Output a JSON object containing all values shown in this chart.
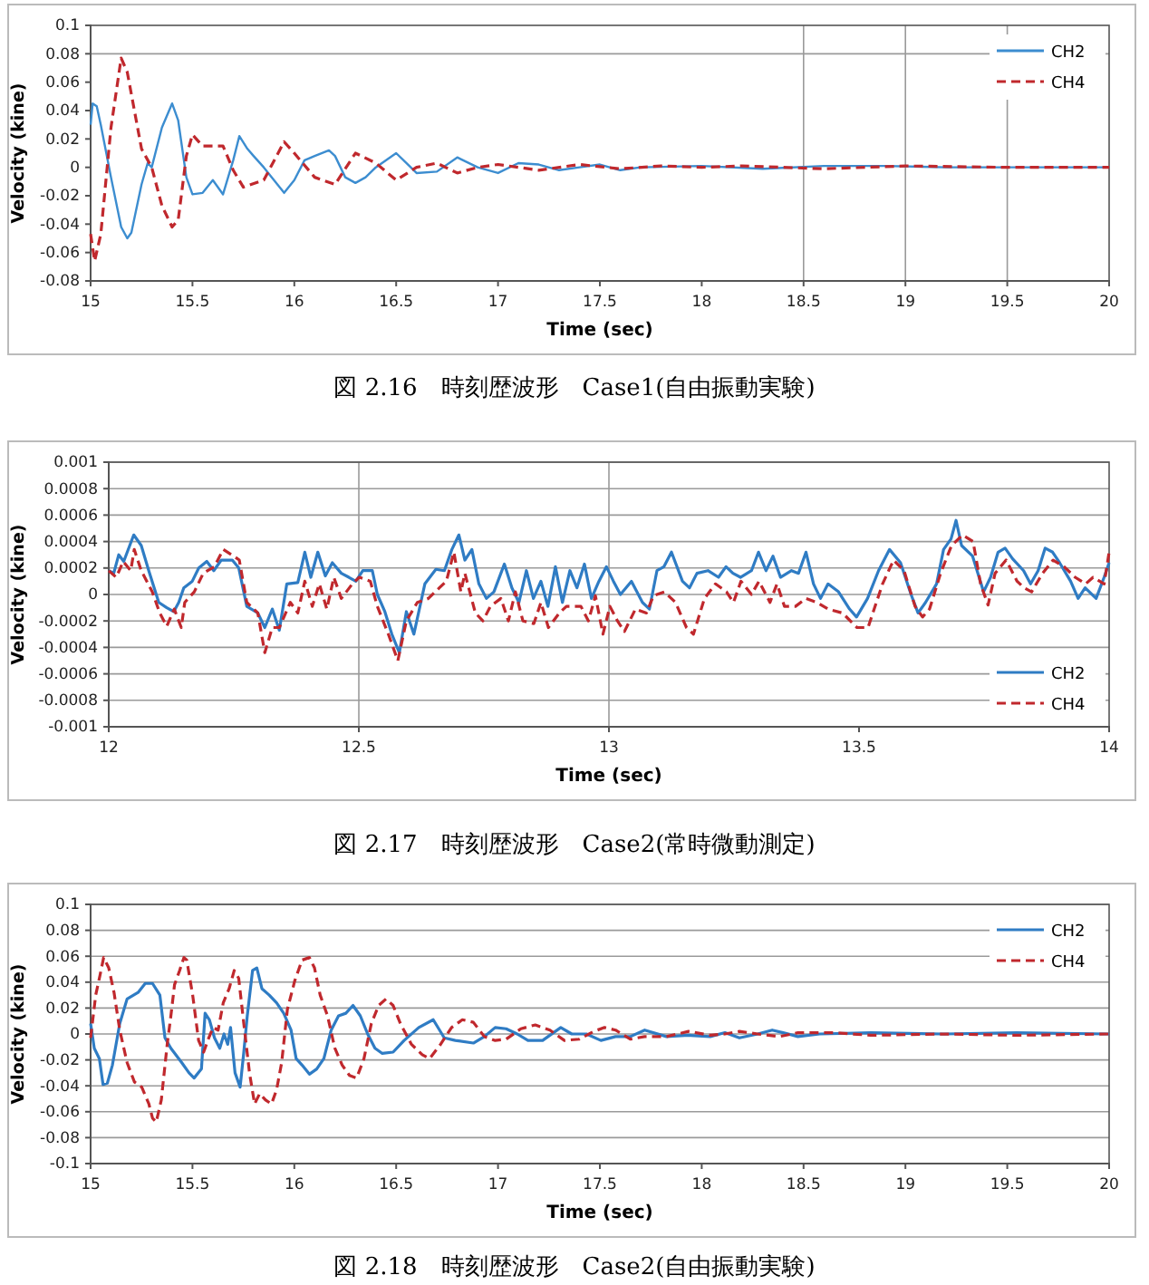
{
  "chart_data": [
    {
      "type": "line",
      "xlabel": "Time (sec)",
      "ylabel": "Velocity (kine)",
      "annotations": [
        "図 2.16　時刻歴波形　Case1(自由振動実験)"
      ],
      "xlim": [
        15,
        20
      ],
      "xticks": [
        15,
        15.5,
        16,
        16.5,
        17,
        17.5,
        18,
        18.5,
        19,
        19.5,
        20
      ],
      "ylim": [
        -0.08,
        0.1
      ],
      "yticks": [
        -0.08,
        -0.06,
        -0.04,
        -0.02,
        0,
        0.02,
        0.04,
        0.06,
        0.08,
        0.1
      ],
      "grid": false,
      "legend": "top right",
      "ref_lines": [
        {
          "axis": "y",
          "value": 0.08
        },
        {
          "axis": "x",
          "value": 18.5
        },
        {
          "axis": "x",
          "value": 19
        },
        {
          "axis": "x",
          "value": 19.5
        }
      ],
      "series": [
        {
          "name": "CH2",
          "color": "#3c8dd0",
          "line_style": "solid",
          "x": [
            15,
            15.01,
            15.03,
            15.05,
            15.1,
            15.15,
            15.18,
            15.2,
            15.25,
            15.28,
            15.3,
            15.35,
            15.4,
            15.43,
            15.47,
            15.5,
            15.55,
            15.6,
            15.65,
            15.7,
            15.73,
            15.77,
            15.8,
            15.85,
            15.9,
            15.95,
            16,
            16.05,
            16.1,
            16.17,
            16.2,
            16.25,
            16.3,
            16.35,
            16.4,
            16.5,
            16.55,
            16.6,
            16.7,
            16.8,
            16.9,
            17,
            17.1,
            17.2,
            17.3,
            17.4,
            17.5,
            17.6,
            17.7,
            18,
            18.3,
            18.6,
            18.9,
            19.2,
            19.5,
            20
          ],
          "values": [
            0.03,
            0.045,
            0.043,
            0.03,
            -0.007,
            -0.042,
            -0.05,
            -0.046,
            -0.012,
            0.003,
            0,
            0.028,
            0.045,
            0.033,
            -0.007,
            -0.019,
            -0.018,
            -0.009,
            -0.019,
            0.005,
            0.022,
            0.013,
            0.008,
            0,
            -0.009,
            -0.018,
            -0.009,
            0.005,
            0.008,
            0.012,
            0.008,
            -0.007,
            -0.011,
            -0.007,
            0,
            0.01,
            0.003,
            -0.004,
            -0.003,
            0.007,
            0,
            -0.004,
            0.003,
            0.002,
            -0.002,
            0,
            0.002,
            -0.002,
            0,
            0.001,
            -0.001,
            0.001,
            0.001,
            0,
            0,
            0
          ]
        },
        {
          "name": "CH4",
          "color": "#c0282d",
          "line_style": "dashed",
          "x": [
            15,
            15.02,
            15.05,
            15.1,
            15.15,
            15.18,
            15.25,
            15.3,
            15.35,
            15.4,
            15.43,
            15.47,
            15.5,
            15.55,
            15.65,
            15.7,
            15.75,
            15.85,
            15.95,
            16,
            16.1,
            16.2,
            16.3,
            16.4,
            16.5,
            16.6,
            16.7,
            16.8,
            16.9,
            17,
            17.2,
            17.4,
            17.6,
            17.8,
            18,
            18.2,
            18.6,
            19,
            19.5,
            20
          ],
          "values": [
            -0.047,
            -0.066,
            -0.047,
            0.028,
            0.077,
            0.067,
            0.013,
            0,
            -0.027,
            -0.042,
            -0.037,
            0.008,
            0.023,
            0.015,
            0.015,
            -0.002,
            -0.014,
            -0.009,
            0.018,
            0.01,
            -0.007,
            -0.012,
            0.01,
            0.003,
            -0.009,
            0,
            0.003,
            -0.004,
            0,
            0.002,
            -0.002,
            0.002,
            -0.001,
            0.001,
            0,
            0.001,
            -0.001,
            0.001,
            0,
            0
          ]
        }
      ]
    },
    {
      "type": "line",
      "xlabel": "Time (sec)",
      "ylabel": "Velocity (kine)",
      "annotations": [
        "図 2.17　時刻歴波形　Case2(常時微動測定)"
      ],
      "xlim": [
        12,
        14
      ],
      "xticks": [
        12,
        12.5,
        13,
        13.5,
        14
      ],
      "ylim": [
        -0.001,
        0.001
      ],
      "yticks": [
        -0.001,
        -0.0008,
        -0.0006,
        -0.0004,
        -0.0002,
        0,
        0.0002,
        0.0004,
        0.0006,
        0.0008,
        0.001
      ],
      "grid": "y",
      "legend": "bottom right",
      "ref_lines": [
        {
          "axis": "x",
          "value": 12.5
        },
        {
          "axis": "x",
          "value": 13
        }
      ],
      "series": [
        {
          "name": "CH2",
          "color": "#2f7cc4",
          "line_style": "solid",
          "x": [
            12,
            12.01,
            12.02,
            12.03,
            12.05,
            12.065,
            12.08,
            12.1,
            12.116,
            12.13,
            12.14,
            12.15,
            12.167,
            12.18,
            12.196,
            12.21,
            12.225,
            12.247,
            12.26,
            12.276,
            12.298,
            12.312,
            12.327,
            12.341,
            12.356,
            12.378,
            12.392,
            12.404,
            12.418,
            12.433,
            12.447,
            12.465,
            12.48,
            12.494,
            12.508,
            12.527,
            12.537,
            12.552,
            12.566,
            12.581,
            12.595,
            12.61,
            12.632,
            12.654,
            12.671,
            12.686,
            12.7,
            12.712,
            12.726,
            12.74,
            12.755,
            12.77,
            12.791,
            12.806,
            12.82,
            12.835,
            12.849,
            12.864,
            12.878,
            12.893,
            12.907,
            12.922,
            12.936,
            12.951,
            12.965,
            12.98,
            12.995,
            13.009,
            13.023,
            13.045,
            13.067,
            13.081,
            13.096,
            13.11,
            13.125,
            13.147,
            13.161,
            13.176,
            13.198,
            13.219,
            13.234,
            13.248,
            13.263,
            13.285,
            13.299,
            13.314,
            13.328,
            13.343,
            13.365,
            13.379,
            13.394,
            13.409,
            13.423,
            13.438,
            13.459,
            13.481,
            13.495,
            13.517,
            13.539,
            13.561,
            13.583,
            13.604,
            13.618,
            13.633,
            13.655,
            13.669,
            13.684,
            13.694,
            13.705,
            13.727,
            13.749,
            13.763,
            13.778,
            13.792,
            13.807,
            13.829,
            13.843,
            13.858,
            13.872,
            13.887,
            13.901,
            13.923,
            13.938,
            13.952,
            13.974,
            13.99,
            14
          ],
          "values": [
            0.00018,
            0.00016,
            0.0003,
            0.00025,
            0.00045,
            0.00037,
            0.00018,
            -6e-05,
            -0.0001,
            -0.00013,
            -6e-05,
            5e-05,
            0.0001,
            0.0002,
            0.00025,
            0.00018,
            0.00026,
            0.00026,
            0.0002,
            -9e-05,
            -0.00014,
            -0.00025,
            -0.00011,
            -0.00027,
            8e-05,
            9e-05,
            0.00032,
            0.00013,
            0.00032,
            0.00014,
            0.00024,
            0.00016,
            0.00013,
            0.0001,
            0.00018,
            0.00018,
            0,
            -0.00013,
            -0.0003,
            -0.00044,
            -0.00013,
            -0.0003,
            8e-05,
            0.00019,
            0.00018,
            0.00034,
            0.00045,
            0.00026,
            0.00034,
            8e-05,
            -3e-05,
            2e-05,
            0.00023,
            5e-05,
            -6e-05,
            0.00018,
            -3e-05,
            0.0001,
            -9e-05,
            0.00021,
            -6e-05,
            0.00018,
            5e-05,
            0.00023,
            -3e-05,
            0.0001,
            0.00021,
            0.0001,
            0,
            0.0001,
            -6e-05,
            -0.00011,
            0.00018,
            0.00021,
            0.00032,
            0.0001,
            5e-05,
            0.00016,
            0.00018,
            0.00013,
            0.00021,
            0.00016,
            0.00013,
            0.00018,
            0.00032,
            0.00018,
            0.00029,
            0.00013,
            0.00018,
            0.00016,
            0.00032,
            8e-05,
            -3e-05,
            8e-05,
            2e-05,
            -0.00011,
            -0.00017,
            -3e-05,
            0.00018,
            0.00034,
            0.00024,
            0,
            -0.00014,
            -6e-05,
            8e-05,
            0.00034,
            0.00042,
            0.00056,
            0.00037,
            0.00029,
            2e-05,
            0.00013,
            0.00032,
            0.00035,
            0.00027,
            0.00018,
            8e-05,
            0.00018,
            0.00035,
            0.00032,
            0.00024,
            0.0001,
            -3e-05,
            5e-05,
            -3e-05,
            0.00013,
            0.00024
          ]
        },
        {
          "name": "CH4",
          "color": "#c0282d",
          "line_style": "dashed",
          "x": [
            12,
            12.015,
            12.029,
            12.044,
            12.051,
            12.065,
            12.087,
            12.102,
            12.116,
            12.131,
            12.145,
            12.152,
            12.171,
            12.189,
            12.211,
            12.229,
            12.25,
            12.261,
            12.276,
            12.298,
            12.312,
            12.327,
            12.341,
            12.363,
            12.378,
            12.392,
            12.407,
            12.421,
            12.436,
            12.45,
            12.465,
            12.487,
            12.501,
            12.523,
            12.537,
            12.559,
            12.578,
            12.595,
            12.617,
            12.639,
            12.661,
            12.675,
            12.69,
            12.704,
            12.712,
            12.733,
            12.748,
            12.763,
            12.784,
            12.799,
            12.813,
            12.828,
            12.85,
            12.864,
            12.879,
            12.901,
            12.915,
            12.944,
            12.959,
            12.973,
            12.988,
            13.002,
            13.017,
            13.031,
            13.053,
            13.075,
            13.089,
            13.111,
            13.133,
            13.155,
            13.169,
            13.191,
            13.213,
            13.235,
            13.249,
            13.264,
            13.285,
            13.3,
            13.322,
            13.336,
            13.351,
            13.373,
            13.394,
            13.416,
            13.438,
            13.467,
            13.496,
            13.518,
            13.547,
            13.569,
            13.59,
            13.612,
            13.627,
            13.641,
            13.663,
            13.685,
            13.707,
            13.728,
            13.743,
            13.758,
            13.772,
            13.794,
            13.816,
            13.83,
            13.845,
            13.867,
            13.888,
            13.91,
            13.932,
            13.953,
            13.968,
            13.99,
            14
          ],
          "values": [
            0.00018,
            0.00013,
            0.00025,
            0.00018,
            0.00034,
            0.00018,
            2e-05,
            -0.00014,
            -0.00024,
            -0.00011,
            -0.00025,
            -6e-05,
            2e-05,
            0.00016,
            0.00021,
            0.00034,
            0.00029,
            0.00026,
            -6e-05,
            -0.00014,
            -0.00044,
            -0.00025,
            -0.00025,
            -6e-05,
            -0.00014,
            0.0001,
            -9e-05,
            8e-05,
            -0.00011,
            0.00013,
            -3e-05,
            8e-05,
            0.00013,
            0.0001,
            -9e-05,
            -0.0003,
            -0.0005,
            -0.0002,
            -6e-05,
            -3e-05,
            5e-05,
            0.0001,
            0.00032,
            2e-05,
            0.00016,
            -0.00014,
            -0.0002,
            -9e-05,
            -3e-05,
            -0.0002,
            2e-05,
            -0.0002,
            -0.00022,
            -6e-05,
            -0.00025,
            -0.00014,
            -9e-05,
            -9e-05,
            -0.0002,
            -1e-05,
            -0.0003,
            -9e-05,
            -0.0002,
            -0.00028,
            -0.00011,
            -0.00014,
            -1e-05,
            2e-05,
            -6e-05,
            -0.00025,
            -0.0003,
            -3e-05,
            8e-05,
            2e-05,
            -6e-05,
            0.0001,
            0,
            0.0001,
            -6e-05,
            8e-05,
            -9e-05,
            -9e-05,
            -3e-05,
            -6e-05,
            -0.00011,
            -0.00014,
            -0.00025,
            -0.00025,
            8e-05,
            0.00026,
            0.00018,
            -9e-05,
            -0.00017,
            -0.00011,
            0.00016,
            0.00037,
            0.00045,
            0.0004,
            8e-05,
            -8e-05,
            0.00016,
            0.00026,
            0.0001,
            5e-05,
            2e-05,
            0.00016,
            0.00026,
            0.00021,
            0.00013,
            8e-05,
            0.00013,
            8e-05,
            0.00032
          ]
        }
      ]
    },
    {
      "type": "line",
      "xlabel": "Time (sec)",
      "ylabel": "Velocity (kine)",
      "annotations": [
        "図 2.18　時刻歴波形　Case2(自由振動実験)"
      ],
      "xlim": [
        15,
        20
      ],
      "xticks": [
        15,
        15.5,
        16,
        16.5,
        17,
        17.5,
        18,
        18.5,
        19,
        19.5,
        20
      ],
      "ylim": [
        -0.1,
        0.1
      ],
      "yticks": [
        -0.1,
        -0.08,
        -0.06,
        -0.04,
        -0.02,
        0,
        0.02,
        0.04,
        0.06,
        0.08,
        0.1
      ],
      "grid": "y",
      "legend": "top right",
      "series": [
        {
          "name": "CH2",
          "color": "#2f7cc4",
          "line_style": "solid",
          "x": [
            15,
            15.018,
            15.043,
            15.061,
            15.082,
            15.107,
            15.143,
            15.179,
            15.233,
            15.268,
            15.304,
            15.34,
            15.365,
            15.394,
            15.447,
            15.483,
            15.508,
            15.544,
            15.562,
            15.583,
            15.608,
            15.634,
            15.655,
            15.673,
            15.687,
            15.709,
            15.734,
            15.752,
            15.769,
            15.795,
            15.816,
            15.841,
            15.877,
            15.913,
            15.948,
            15.984,
            16.009,
            16.038,
            16.074,
            16.11,
            16.145,
            16.181,
            16.217,
            16.253,
            16.288,
            16.324,
            16.36,
            16.396,
            16.432,
            16.485,
            16.539,
            16.611,
            16.682,
            16.736,
            16.79,
            16.879,
            16.933,
            16.986,
            17.04,
            17.094,
            17.147,
            17.219,
            17.308,
            17.362,
            17.434,
            17.505,
            17.577,
            17.649,
            17.72,
            17.827,
            17.935,
            18.042,
            18.114,
            18.185,
            18.275,
            18.346,
            18.4,
            18.472,
            18.579,
            18.83,
            19.188,
            19.545,
            20
          ],
          "values": [
            0.008,
            -0.011,
            -0.019,
            -0.039,
            -0.038,
            -0.024,
            0.008,
            0.027,
            0.032,
            0.039,
            0.039,
            0.03,
            -0.003,
            -0.011,
            -0.022,
            -0.03,
            -0.034,
            -0.027,
            0.016,
            0.011,
            -0.003,
            -0.011,
            0,
            -0.008,
            0.005,
            -0.03,
            -0.041,
            -0.014,
            0.014,
            0.049,
            0.051,
            0.035,
            0.03,
            0.024,
            0.016,
            0.003,
            -0.019,
            -0.024,
            -0.031,
            -0.027,
            -0.019,
            0.003,
            0.014,
            0.016,
            0.022,
            0.014,
            0,
            -0.011,
            -0.015,
            -0.014,
            -0.005,
            0.005,
            0.011,
            -0.003,
            -0.005,
            -0.007,
            -0.002,
            0.005,
            0.004,
            0,
            -0.005,
            -0.005,
            0.005,
            0,
            0,
            -0.005,
            -0.002,
            -0.002,
            0.003,
            -0.002,
            -0.001,
            -0.002,
            0.001,
            -0.003,
            0,
            0.003,
            0.001,
            -0.002,
            0,
            0.001,
            0,
            0.001,
            0
          ]
        },
        {
          "name": "CH4",
          "color": "#c0282d",
          "line_style": "dashed",
          "x": [
            15,
            15.025,
            15.047,
            15.064,
            15.089,
            15.115,
            15.143,
            15.179,
            15.215,
            15.251,
            15.286,
            15.304,
            15.322,
            15.347,
            15.376,
            15.394,
            15.412,
            15.437,
            15.458,
            15.472,
            15.501,
            15.53,
            15.555,
            15.58,
            15.601,
            15.626,
            15.651,
            15.68,
            15.705,
            15.727,
            15.752,
            15.78,
            15.805,
            15.83,
            15.859,
            15.888,
            15.913,
            15.938,
            15.966,
            16.002,
            16.038,
            16.074,
            16.099,
            16.127,
            16.163,
            16.199,
            16.235,
            16.271,
            16.306,
            16.342,
            16.378,
            16.414,
            16.45,
            16.485,
            16.521,
            16.575,
            16.628,
            16.664,
            16.718,
            16.772,
            16.825,
            16.879,
            16.933,
            16.986,
            17.04,
            17.112,
            17.183,
            17.255,
            17.326,
            17.398,
            17.47,
            17.523,
            17.577,
            17.649,
            17.72,
            17.827,
            17.935,
            18.042,
            18.114,
            18.185,
            18.275,
            18.382,
            18.472,
            18.651,
            18.83,
            19.188,
            19.545,
            20
          ],
          "values": [
            -0.003,
            0.03,
            0.046,
            0.059,
            0.051,
            0.032,
            0.003,
            -0.022,
            -0.037,
            -0.041,
            -0.054,
            -0.065,
            -0.068,
            -0.051,
            -0.008,
            0.014,
            0.038,
            0.049,
            0.059,
            0.057,
            0.03,
            -0.005,
            -0.014,
            -0.003,
            0.005,
            0.003,
            0.024,
            0.035,
            0.049,
            0.043,
            0.008,
            -0.03,
            -0.054,
            -0.046,
            -0.051,
            -0.054,
            -0.043,
            -0.022,
            0.019,
            0.041,
            0.057,
            0.059,
            0.051,
            0.03,
            0.014,
            -0.011,
            -0.024,
            -0.032,
            -0.034,
            -0.019,
            0.008,
            0.022,
            0.027,
            0.022,
            0.008,
            -0.008,
            -0.016,
            -0.019,
            -0.008,
            0.005,
            0.011,
            0.009,
            -0.002,
            -0.005,
            -0.004,
            0.004,
            0.007,
            0.003,
            -0.005,
            -0.004,
            0.002,
            0.005,
            0.003,
            -0.004,
            -0.002,
            -0.002,
            0.002,
            -0.001,
            0,
            0.002,
            0,
            -0.002,
            0.001,
            0.001,
            -0.001,
            0,
            -0.001,
            0
          ]
        }
      ]
    }
  ]
}
